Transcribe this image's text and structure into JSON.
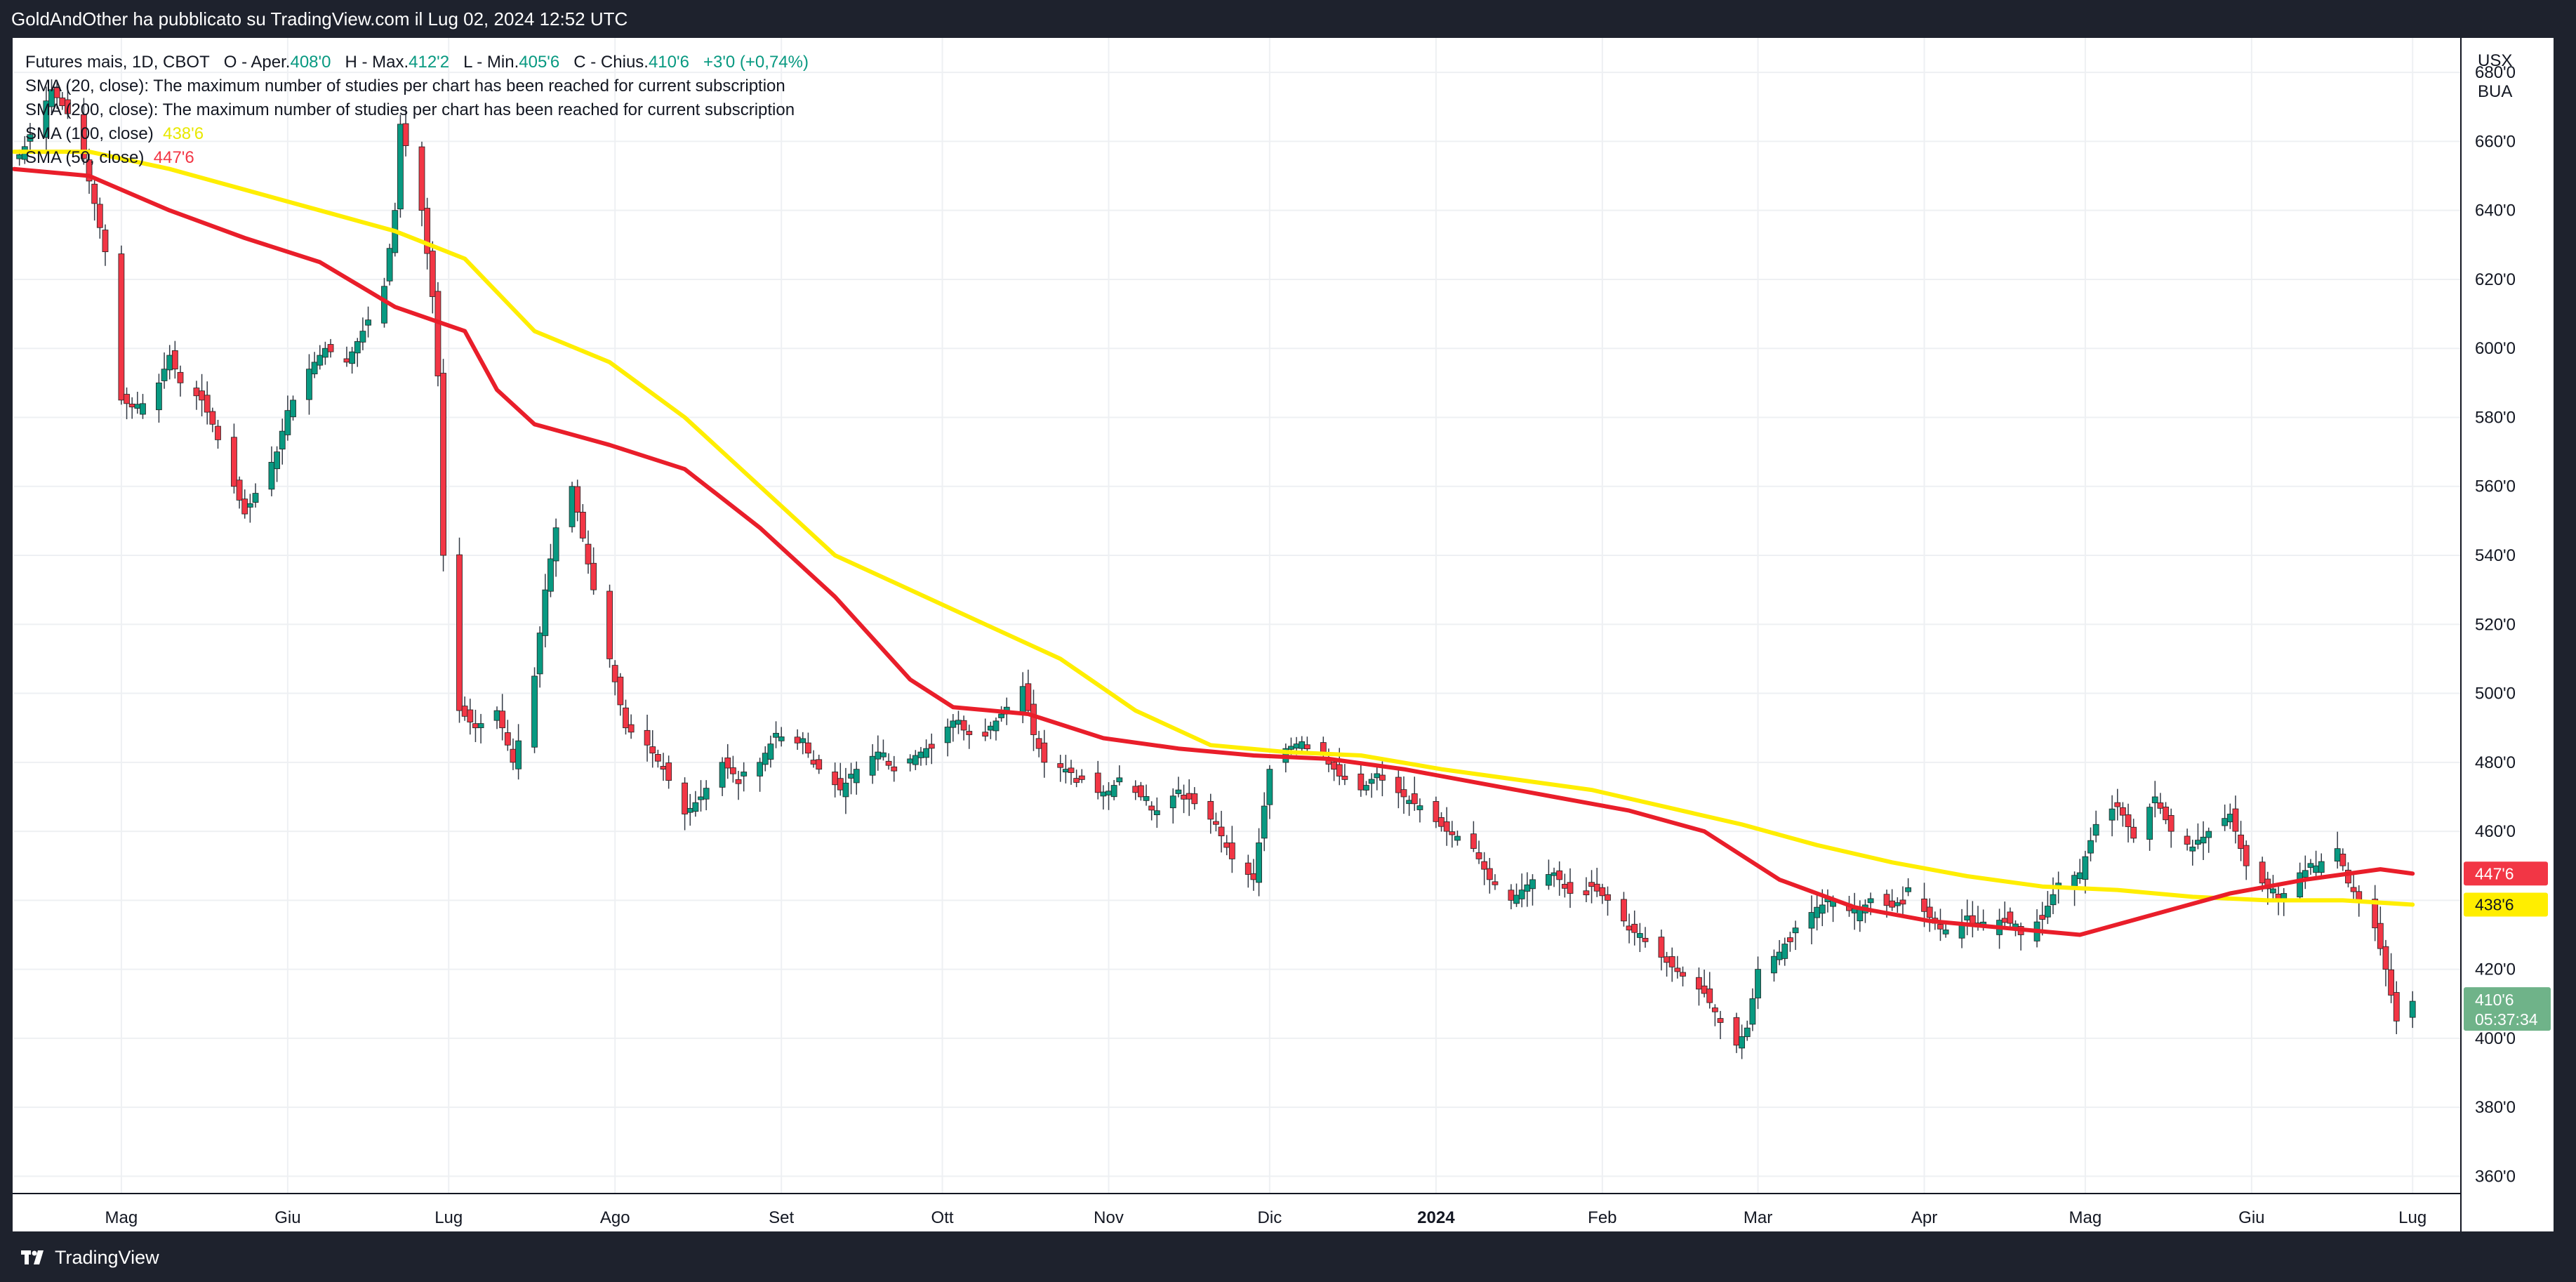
{
  "header": {
    "published": "GoldAndOther ha pubblicato su TradingView.com il Lug 02, 2024 12:52 UTC"
  },
  "legend": {
    "symbol": "Futures mais, 1D, CBOT",
    "open_label": "O - Aper.",
    "open": "408'0",
    "high_label": "H - Max.",
    "high": "412'2",
    "low_label": "L - Min.",
    "low": "405'6",
    "close_label": "C - Chius.",
    "close": "410'6",
    "change": "+3'0 (+0,74%)",
    "sma20": "SMA (20, close): The maximum number of studies per chart has been reached for current subscription",
    "sma200": "SMA (200, close): The maximum number of studies per chart has been reached for current subscription",
    "sma100_label": "SMA (100, close)",
    "sma100_value": "438'6",
    "sma50_label": "SMA (50, close)",
    "sma50_value": "447'6"
  },
  "axis": {
    "currency": "USX",
    "unit": "BUA",
    "time_left": "05:37:34"
  },
  "colors": {
    "up": "#089981",
    "down": "#f23645",
    "sma50": "#e91e2a",
    "sma100": "#ffee00",
    "last_price_badge": "#6fb389"
  },
  "footer": {
    "brand": "TradingView"
  },
  "chart_data": {
    "type": "candlestick",
    "title": "Futures mais, 1D, CBOT",
    "ylim": [
      355,
      690
    ],
    "y_ticks": [
      "360'0",
      "380'0",
      "400'0",
      "420'0",
      "440'0",
      "460'0",
      "480'0",
      "500'0",
      "520'0",
      "540'0",
      "560'0",
      "580'0",
      "600'0",
      "620'0",
      "640'0",
      "660'0",
      "680'0"
    ],
    "x_ticks": [
      {
        "label": "Mag",
        "bold": false
      },
      {
        "label": "Giu",
        "bold": false
      },
      {
        "label": "Lug",
        "bold": false
      },
      {
        "label": "Ago",
        "bold": false
      },
      {
        "label": "Set",
        "bold": false
      },
      {
        "label": "Ott",
        "bold": false
      },
      {
        "label": "Nov",
        "bold": false
      },
      {
        "label": "Dic",
        "bold": false
      },
      {
        "label": "2024",
        "bold": true
      },
      {
        "label": "Feb",
        "bold": false
      },
      {
        "label": "Mar",
        "bold": false
      },
      {
        "label": "Apr",
        "bold": false
      },
      {
        "label": "Mag",
        "bold": false
      },
      {
        "label": "Giu",
        "bold": false
      },
      {
        "label": "Lug",
        "bold": false
      }
    ],
    "x_tick_dates": [
      "2023-05-01",
      "2023-06-01",
      "2023-07-01",
      "2023-08-01",
      "2023-09-01",
      "2023-10-01",
      "2023-11-01",
      "2023-12-01",
      "2024-01-01",
      "2024-02-01",
      "2024-03-01",
      "2024-04-01",
      "2024-05-01",
      "2024-06-01",
      "2024-07-01"
    ],
    "x_range": [
      "2023-04-11",
      "2024-07-10"
    ],
    "close_path": [
      [
        "2023-04-12",
        655
      ],
      [
        "2023-04-14",
        662
      ],
      [
        "2023-04-18",
        675
      ],
      [
        "2023-04-21",
        668
      ],
      [
        "2023-04-24",
        655
      ],
      [
        "2023-04-26",
        642
      ],
      [
        "2023-04-28",
        628
      ],
      [
        "2023-05-01",
        585
      ],
      [
        "2023-05-04",
        582
      ],
      [
        "2023-05-08",
        590
      ],
      [
        "2023-05-10",
        598
      ],
      [
        "2023-05-12",
        590
      ],
      [
        "2023-05-16",
        585
      ],
      [
        "2023-05-18",
        578
      ],
      [
        "2023-05-22",
        560
      ],
      [
        "2023-05-24",
        552
      ],
      [
        "2023-05-26",
        558
      ],
      [
        "2023-05-30",
        570
      ],
      [
        "2023-06-01",
        582
      ],
      [
        "2023-06-05",
        594
      ],
      [
        "2023-06-08",
        600
      ],
      [
        "2023-06-12",
        596
      ],
      [
        "2023-06-15",
        605
      ],
      [
        "2023-06-19",
        618
      ],
      [
        "2023-06-21",
        640
      ],
      [
        "2023-06-22",
        665
      ],
      [
        "2023-06-26",
        640
      ],
      [
        "2023-06-28",
        615
      ],
      [
        "2023-06-29",
        592
      ],
      [
        "2023-06-30",
        540
      ],
      [
        "2023-07-03",
        495
      ],
      [
        "2023-07-06",
        490
      ],
      [
        "2023-07-10",
        495
      ],
      [
        "2023-07-13",
        480
      ],
      [
        "2023-07-17",
        505
      ],
      [
        "2023-07-19",
        530
      ],
      [
        "2023-07-21",
        548
      ],
      [
        "2023-07-24",
        560
      ],
      [
        "2023-07-26",
        545
      ],
      [
        "2023-07-28",
        530
      ],
      [
        "2023-07-31",
        510
      ],
      [
        "2023-08-03",
        490
      ],
      [
        "2023-08-07",
        485
      ],
      [
        "2023-08-10",
        478
      ],
      [
        "2023-08-14",
        465
      ],
      [
        "2023-08-17",
        470
      ],
      [
        "2023-08-21",
        480
      ],
      [
        "2023-08-24",
        475
      ],
      [
        "2023-08-28",
        480
      ],
      [
        "2023-08-31",
        488
      ],
      [
        "2023-09-05",
        485
      ],
      [
        "2023-09-08",
        478
      ],
      [
        "2023-09-12",
        472
      ],
      [
        "2023-09-15",
        478
      ],
      [
        "2023-09-19",
        483
      ],
      [
        "2023-09-22",
        478
      ],
      [
        "2023-09-26",
        482
      ],
      [
        "2023-09-29",
        485
      ],
      [
        "2023-10-03",
        492
      ],
      [
        "2023-10-06",
        488
      ],
      [
        "2023-10-10",
        490
      ],
      [
        "2023-10-13",
        496
      ],
      [
        "2023-10-16",
        502
      ],
      [
        "2023-10-18",
        488
      ],
      [
        "2023-10-20",
        480
      ],
      [
        "2023-10-24",
        478
      ],
      [
        "2023-10-27",
        475
      ],
      [
        "2023-10-31",
        470
      ],
      [
        "2023-11-03",
        475
      ],
      [
        "2023-11-07",
        470
      ],
      [
        "2023-11-10",
        465
      ],
      [
        "2023-11-14",
        472
      ],
      [
        "2023-11-17",
        468
      ],
      [
        "2023-11-21",
        462
      ],
      [
        "2023-11-24",
        452
      ],
      [
        "2023-11-28",
        446
      ],
      [
        "2023-12-01",
        478
      ],
      [
        "2023-12-04",
        484
      ],
      [
        "2023-12-07",
        486
      ],
      [
        "2023-12-11",
        482
      ],
      [
        "2023-12-14",
        476
      ],
      [
        "2023-12-18",
        472
      ],
      [
        "2023-12-21",
        476
      ],
      [
        "2023-12-26",
        470
      ],
      [
        "2023-12-29",
        467
      ],
      [
        "2024-01-03",
        460
      ],
      [
        "2024-01-08",
        455
      ],
      [
        "2024-01-11",
        446
      ],
      [
        "2024-01-15",
        440
      ],
      [
        "2024-01-19",
        446
      ],
      [
        "2024-01-23",
        448
      ],
      [
        "2024-01-26",
        442
      ],
      [
        "2024-01-30",
        444
      ],
      [
        "2024-02-02",
        440
      ],
      [
        "2024-02-06",
        432
      ],
      [
        "2024-02-09",
        428
      ],
      [
        "2024-02-13",
        422
      ],
      [
        "2024-02-16",
        418
      ],
      [
        "2024-02-20",
        413
      ],
      [
        "2024-02-23",
        405
      ],
      [
        "2024-02-26",
        398
      ],
      [
        "2024-02-28",
        403
      ],
      [
        "2024-03-01",
        420
      ],
      [
        "2024-03-05",
        425
      ],
      [
        "2024-03-08",
        432
      ],
      [
        "2024-03-12",
        438
      ],
      [
        "2024-03-15",
        440
      ],
      [
        "2024-03-19",
        436
      ],
      [
        "2024-03-22",
        440
      ],
      [
        "2024-03-26",
        438
      ],
      [
        "2024-03-29",
        442
      ],
      [
        "2024-04-02",
        435
      ],
      [
        "2024-04-05",
        430
      ],
      [
        "2024-04-09",
        434
      ],
      [
        "2024-04-12",
        432
      ],
      [
        "2024-04-16",
        435
      ],
      [
        "2024-04-19",
        430
      ],
      [
        "2024-04-23",
        435
      ],
      [
        "2024-04-26",
        445
      ],
      [
        "2024-04-30",
        448
      ],
      [
        "2024-05-03",
        462
      ],
      [
        "2024-05-07",
        468
      ],
      [
        "2024-05-10",
        458
      ],
      [
        "2024-05-14",
        470
      ],
      [
        "2024-05-17",
        460
      ],
      [
        "2024-05-21",
        455
      ],
      [
        "2024-05-24",
        460
      ],
      [
        "2024-05-28",
        465
      ],
      [
        "2024-05-31",
        450
      ],
      [
        "2024-06-03",
        445
      ],
      [
        "2024-06-06",
        440
      ],
      [
        "2024-06-10",
        448
      ],
      [
        "2024-06-13",
        450
      ],
      [
        "2024-06-17",
        455
      ],
      [
        "2024-06-19",
        445
      ],
      [
        "2024-06-21",
        440
      ],
      [
        "2024-06-24",
        432
      ],
      [
        "2024-06-26",
        420
      ],
      [
        "2024-06-28",
        405
      ],
      [
        "2024-07-01",
        410.75
      ]
    ],
    "sma50_path": [
      [
        "2023-04-11",
        652
      ],
      [
        "2023-04-25",
        650
      ],
      [
        "2023-05-10",
        640
      ],
      [
        "2023-05-24",
        632
      ],
      [
        "2023-06-07",
        625
      ],
      [
        "2023-06-21",
        612
      ],
      [
        "2023-07-04",
        605
      ],
      [
        "2023-07-10",
        588
      ],
      [
        "2023-07-17",
        578
      ],
      [
        "2023-07-31",
        572
      ],
      [
        "2023-08-14",
        565
      ],
      [
        "2023-08-28",
        548
      ],
      [
        "2023-09-11",
        528
      ],
      [
        "2023-09-25",
        504
      ],
      [
        "2023-10-03",
        496
      ],
      [
        "2023-10-17",
        494
      ],
      [
        "2023-10-31",
        487
      ],
      [
        "2023-11-14",
        484
      ],
      [
        "2023-11-28",
        482
      ],
      [
        "2023-12-12",
        481
      ],
      [
        "2023-12-26",
        478
      ],
      [
        "2024-01-09",
        474
      ],
      [
        "2024-01-23",
        470
      ],
      [
        "2024-02-06",
        466
      ],
      [
        "2024-02-20",
        460
      ],
      [
        "2024-03-05",
        446
      ],
      [
        "2024-03-19",
        438
      ],
      [
        "2024-04-02",
        434
      ],
      [
        "2024-04-16",
        432
      ],
      [
        "2024-04-30",
        430
      ],
      [
        "2024-05-14",
        436
      ],
      [
        "2024-05-28",
        442
      ],
      [
        "2024-06-11",
        446
      ],
      [
        "2024-06-25",
        449
      ],
      [
        "2024-07-01",
        447.75
      ]
    ],
    "sma100_path": [
      [
        "2023-04-11",
        657
      ],
      [
        "2023-04-25",
        657
      ],
      [
        "2023-05-10",
        652
      ],
      [
        "2023-05-24",
        646
      ],
      [
        "2023-06-07",
        640
      ],
      [
        "2023-06-21",
        634
      ],
      [
        "2023-07-04",
        626
      ],
      [
        "2023-07-17",
        605
      ],
      [
        "2023-07-31",
        596
      ],
      [
        "2023-08-14",
        580
      ],
      [
        "2023-08-28",
        560
      ],
      [
        "2023-09-11",
        540
      ],
      [
        "2023-09-25",
        530
      ],
      [
        "2023-10-09",
        520
      ],
      [
        "2023-10-23",
        510
      ],
      [
        "2023-11-06",
        495
      ],
      [
        "2023-11-20",
        485
      ],
      [
        "2023-12-04",
        483
      ],
      [
        "2023-12-18",
        482
      ],
      [
        "2024-01-02",
        478
      ],
      [
        "2024-01-16",
        475
      ],
      [
        "2024-01-30",
        472
      ],
      [
        "2024-02-13",
        467
      ],
      [
        "2024-02-27",
        462
      ],
      [
        "2024-03-12",
        456
      ],
      [
        "2024-03-26",
        451
      ],
      [
        "2024-04-09",
        447
      ],
      [
        "2024-04-23",
        444
      ],
      [
        "2024-05-07",
        443
      ],
      [
        "2024-05-21",
        441
      ],
      [
        "2024-06-04",
        440
      ],
      [
        "2024-06-18",
        440
      ],
      [
        "2024-07-01",
        438.75
      ]
    ],
    "last_price": 410.75,
    "last_price_label": "410'6",
    "sma50_last": 447.75,
    "sma50_last_label": "447'6",
    "sma100_last": 438.75,
    "sma100_last_label": "438'6"
  }
}
